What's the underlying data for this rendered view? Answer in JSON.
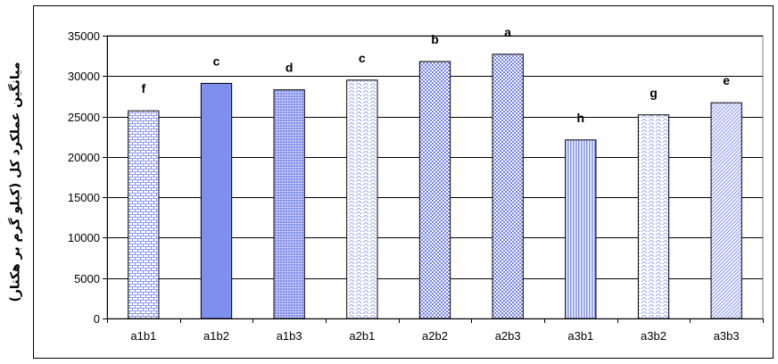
{
  "chart_data": {
    "type": "bar",
    "categories": [
      "a1b1",
      "a1b2",
      "a1b3",
      "a2b1",
      "a2b2",
      "a2b3",
      "a3b1",
      "a3b2",
      "a3b3"
    ],
    "values": [
      25700,
      29100,
      28300,
      29500,
      31800,
      32700,
      22100,
      25200,
      26700
    ],
    "annotations": [
      "f",
      "c",
      "d",
      "c",
      "b",
      "a",
      "h",
      "g",
      "e"
    ],
    "title": "",
    "xlabel": "",
    "ylabel": "میانگین عملکرد کل (کیلو گرم بر هکتار)",
    "ylim": [
      0,
      35000
    ],
    "yticks": [
      0,
      5000,
      10000,
      15000,
      20000,
      25000,
      30000,
      35000
    ],
    "grid": "horizontal",
    "plot_background": "#ffffff",
    "bar_outline": "#000000",
    "bar_fills": [
      "#9aa6ee",
      "#7f8ff0",
      "#8b97ec",
      "#c6cdf6",
      "#9ba6ee",
      "#a6b0f2",
      "#8f99e8",
      "#c3c9f3",
      "#a2abee"
    ],
    "bar_patterns": [
      "brick",
      "solid",
      "dots",
      "wave",
      "checker",
      "checker",
      "vertical",
      "wave",
      "diagonal"
    ]
  }
}
